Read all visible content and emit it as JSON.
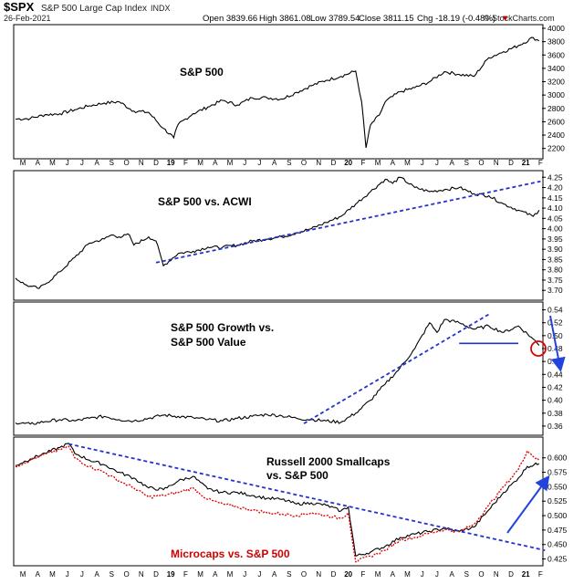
{
  "header": {
    "symbol": "$SPX",
    "name": "S&P 500 Large Cap Index",
    "exchange": "INDX",
    "date": "26-Feb-2021",
    "open": "Open 3839.66",
    "high": "High 3861.08",
    "low": "Low 3789.54",
    "close": "Close 3811.15",
    "chg": "Chg -18.19 (-0.48%)",
    "chg_arrow": "▼",
    "watermark": "© StockCharts.com"
  },
  "colors": {
    "price_line": "#000000",
    "trend_line": "#2233cc",
    "microcaps_line": "#dd0000",
    "annotation_arrow": "#2244dd",
    "circle": "#dd0000"
  },
  "axis": {
    "month_labels": [
      "M",
      "A",
      "M",
      "J",
      "J",
      "A",
      "S",
      "O",
      "N",
      "D",
      "19",
      "F",
      "M",
      "A",
      "M",
      "J",
      "J",
      "A",
      "S",
      "O",
      "N",
      "D",
      "20",
      "F",
      "M",
      "A",
      "M",
      "J",
      "J",
      "A",
      "S",
      "O",
      "N",
      "D",
      "21",
      "F"
    ]
  },
  "chart_data": [
    {
      "type": "line",
      "title": "S&P 500",
      "ylim": [
        2100,
        4000
      ],
      "yticks": [
        "4000",
        "3800",
        "3600",
        "3400",
        "3200",
        "3000",
        "2800",
        "2600",
        "2400",
        "2200"
      ],
      "series": [
        {
          "name": "S&P 500",
          "x": [
            0,
            1,
            2,
            3,
            4,
            5,
            6,
            7,
            8,
            9,
            10,
            10.7,
            11,
            12,
            13,
            14,
            15,
            16,
            17,
            18,
            19,
            20,
            21,
            22,
            23,
            23.4,
            23.7,
            24,
            24.6,
            25,
            26,
            27,
            28,
            29,
            30,
            31,
            32,
            33,
            34,
            35,
            35.4
          ],
          "y": [
            2640,
            2650,
            2705,
            2720,
            2780,
            2840,
            2880,
            2900,
            2760,
            2740,
            2500,
            2360,
            2560,
            2720,
            2820,
            2920,
            2850,
            2960,
            2960,
            2940,
            3040,
            3140,
            3220,
            3280,
            3360,
            2900,
            2210,
            2550,
            2700,
            2900,
            3050,
            3110,
            3200,
            3350,
            3310,
            3280,
            3560,
            3650,
            3740,
            3860,
            3811
          ]
        }
      ]
    },
    {
      "type": "line",
      "title": "S&P 500 vs. ACWI",
      "ylim": [
        3.67,
        4.26
      ],
      "yticks": [
        "4.25",
        "4.20",
        "4.15",
        "4.10",
        "4.05",
        "4.00",
        "3.95",
        "3.90",
        "3.85",
        "3.80",
        "3.75",
        "3.70"
      ],
      "series": [
        {
          "name": "S&P 500 vs. ACWI",
          "x": [
            0,
            0.6,
            1,
            1.6,
            2,
            3,
            4,
            5,
            6,
            6.5,
            7,
            7.7,
            8,
            9,
            9.5,
            10,
            11,
            12,
            13,
            14,
            15,
            16,
            17,
            18,
            19,
            20,
            21,
            22,
            23,
            24,
            25,
            25.5,
            26,
            27,
            28,
            29,
            30,
            31,
            32,
            33,
            34,
            35,
            35.4
          ],
          "y": [
            3.76,
            3.73,
            3.72,
            3.71,
            3.73,
            3.79,
            3.86,
            3.93,
            3.95,
            3.97,
            3.96,
            3.97,
            3.92,
            3.96,
            3.94,
            3.82,
            3.88,
            3.89,
            3.91,
            3.91,
            3.92,
            3.94,
            3.95,
            3.96,
            3.98,
            4.0,
            4.03,
            4.06,
            4.12,
            4.18,
            4.24,
            4.22,
            4.25,
            4.2,
            4.18,
            4.19,
            4.2,
            4.17,
            4.16,
            4.12,
            4.09,
            4.06,
            4.09
          ]
        },
        {
          "name": "trendline",
          "x": [
            9.5,
            35.5
          ],
          "y": [
            3.835,
            4.23
          ]
        }
      ]
    },
    {
      "type": "line",
      "title": "S&P 500 Growth vs. S&P 500 Value",
      "ylim": [
        0.35,
        0.545
      ],
      "yticks": [
        "0.54",
        "0.52",
        "0.50",
        "0.48",
        "0.46",
        "0.44",
        "0.42",
        "0.40",
        "0.38",
        "0.36"
      ],
      "series": [
        {
          "name": "S&P 500 Growth vs. S&P 500 Value",
          "x": [
            0,
            1,
            2,
            3,
            4,
            5,
            6,
            7,
            8,
            9,
            10,
            11,
            12,
            13,
            14,
            15,
            16,
            17,
            18,
            19,
            20,
            21,
            22,
            23,
            24,
            25,
            26,
            27,
            28,
            28.5,
            29,
            30,
            31,
            32,
            33,
            34,
            35,
            35.4
          ],
          "y": [
            0.365,
            0.363,
            0.367,
            0.37,
            0.368,
            0.372,
            0.375,
            0.37,
            0.368,
            0.372,
            0.377,
            0.375,
            0.373,
            0.37,
            0.368,
            0.372,
            0.375,
            0.378,
            0.376,
            0.372,
            0.37,
            0.368,
            0.366,
            0.38,
            0.4,
            0.425,
            0.45,
            0.48,
            0.52,
            0.505,
            0.525,
            0.52,
            0.51,
            0.515,
            0.505,
            0.515,
            0.495,
            0.485
          ]
        },
        {
          "name": "trendline",
          "x": [
            19.5,
            32
          ],
          "y": [
            0.364,
            0.533
          ]
        },
        {
          "name": "support",
          "x": [
            30,
            34
          ],
          "y": [
            0.488,
            0.488
          ]
        }
      ]
    },
    {
      "type": "line",
      "title": "Russell 2000 Smallcaps vs. S&P 500",
      "ylim": [
        0.418,
        0.628
      ],
      "yticks": [
        "0.600",
        "0.575",
        "0.550",
        "0.525",
        "0.500",
        "0.475",
        "0.450",
        "0.425"
      ],
      "series": [
        {
          "name": "Russell 2000 Smallcaps vs. S&P 500",
          "x": [
            0,
            1,
            2,
            3,
            3.6,
            4,
            5,
            6,
            7,
            8,
            9,
            10,
            11,
            12,
            13,
            14,
            15,
            16,
            17,
            18,
            19,
            20,
            21,
            22,
            22.5,
            23,
            24,
            25,
            26,
            27,
            28,
            29,
            30,
            31,
            32,
            33,
            34,
            34.6,
            35.4
          ],
          "y": [
            0.587,
            0.598,
            0.608,
            0.618,
            0.625,
            0.608,
            0.596,
            0.588,
            0.575,
            0.565,
            0.548,
            0.545,
            0.56,
            0.568,
            0.546,
            0.54,
            0.54,
            0.535,
            0.53,
            0.528,
            0.52,
            0.522,
            0.518,
            0.508,
            0.515,
            0.43,
            0.437,
            0.447,
            0.462,
            0.468,
            0.473,
            0.478,
            0.473,
            0.48,
            0.51,
            0.54,
            0.565,
            0.585,
            0.59
          ]
        },
        {
          "name": "Microcaps vs. S&P 500",
          "x": [
            0,
            1,
            2,
            3,
            3.6,
            4,
            5,
            6,
            7,
            8,
            9,
            10,
            11,
            12,
            13,
            14,
            15,
            16,
            17,
            18,
            19,
            20,
            21,
            22,
            22.5,
            23,
            24,
            25,
            26,
            27,
            28,
            29,
            30,
            31,
            32,
            33,
            34,
            34.6,
            35.4
          ],
          "y": [
            0.585,
            0.596,
            0.606,
            0.614,
            0.62,
            0.6,
            0.585,
            0.575,
            0.56,
            0.548,
            0.532,
            0.535,
            0.54,
            0.548,
            0.528,
            0.52,
            0.515,
            0.51,
            0.505,
            0.503,
            0.5,
            0.505,
            0.5,
            0.495,
            0.505,
            0.42,
            0.43,
            0.44,
            0.458,
            0.462,
            0.47,
            0.476,
            0.472,
            0.485,
            0.518,
            0.55,
            0.58,
            0.612,
            0.595
          ]
        },
        {
          "name": "trendline",
          "x": [
            3.6,
            35.8
          ],
          "y": [
            0.624,
            0.44
          ]
        }
      ]
    }
  ],
  "labels": {
    "p1": "S&P 500",
    "p2": "S&P 500 vs. ACWI",
    "p3a": "S&P 500 Growth vs.",
    "p3b": "S&P 500 Value",
    "p4a": "Russell 2000 Smallcaps",
    "p4b": "vs. S&P 500",
    "p4c": "Microcaps vs. S&P 500"
  }
}
